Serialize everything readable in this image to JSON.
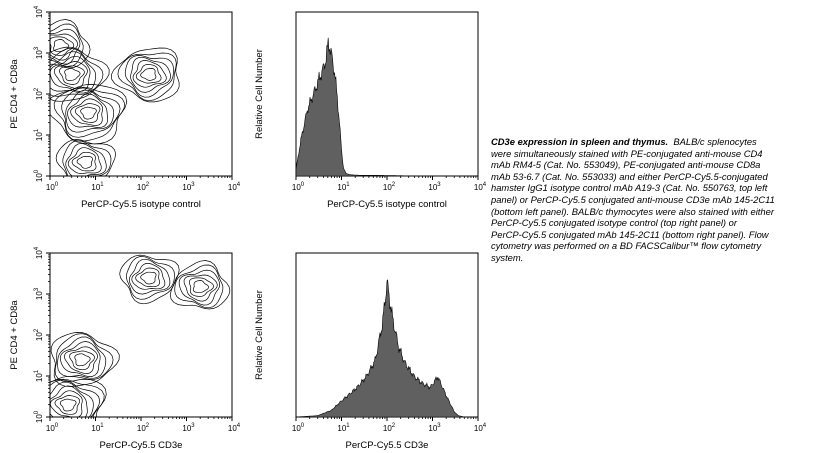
{
  "chart_data": [
    {
      "type": "contour",
      "panel": "top-left",
      "xlabel": "PerCP-Cy5.5 isotype control",
      "ylabel": "PE CD4 + CD8a",
      "x_scale": "log",
      "y_scale": "log",
      "xlim": [
        1,
        10000
      ],
      "ylim": [
        1,
        10000
      ],
      "x_ticks": [
        "10^0",
        "10^1",
        "10^2",
        "10^3",
        "10^4"
      ],
      "y_ticks": [
        "10^0",
        "10^1",
        "10^2",
        "10^3",
        "10^4"
      ],
      "populations": [
        {
          "x": 1.7,
          "y": 1500
        },
        {
          "x": 3,
          "y": 300
        },
        {
          "x": 7,
          "y": 35
        },
        {
          "x": 6,
          "y": 2.2
        },
        {
          "x": 150,
          "y": 300
        }
      ]
    },
    {
      "type": "histogram",
      "panel": "top-right",
      "xlabel": "PerCP-Cy5.5 isotype control",
      "ylabel": "Relative Cell Number",
      "x_scale": "log",
      "xlim": [
        1,
        10000
      ],
      "x_ticks": [
        "10^0",
        "10^1",
        "10^2",
        "10^3",
        "10^4"
      ],
      "fill": "#606060",
      "x": [
        1,
        1.3,
        1.8,
        2.5,
        3.2,
        4,
        4.6,
        5.2,
        6,
        7,
        8,
        9,
        10,
        11,
        12.5,
        15,
        25,
        60,
        200,
        1000,
        10000
      ],
      "y": [
        0.05,
        0.28,
        0.5,
        0.62,
        0.72,
        0.8,
        0.88,
        1.0,
        0.9,
        0.78,
        0.6,
        0.4,
        0.2,
        0.06,
        0.02,
        0.01,
        0.005,
        0.005,
        0.002,
        0,
        0
      ]
    },
    {
      "type": "contour",
      "panel": "bottom-left",
      "xlabel": "PerCP-Cy5.5 CD3e",
      "ylabel": "PE CD4 + CD8a",
      "x_scale": "log",
      "y_scale": "log",
      "xlim": [
        1,
        10000
      ],
      "ylim": [
        1,
        10000
      ],
      "x_ticks": [
        "10^0",
        "10^1",
        "10^2",
        "10^3",
        "10^4"
      ],
      "y_ticks": [
        "10^0",
        "10^1",
        "10^2",
        "10^3",
        "10^4"
      ],
      "populations": [
        {
          "x": 2000,
          "y": 1500
        },
        {
          "x": 5,
          "y": 25
        },
        {
          "x": 2.5,
          "y": 2
        },
        {
          "x": 150,
          "y": 2500
        }
      ]
    },
    {
      "type": "histogram",
      "panel": "bottom-right",
      "xlabel": "PerCP-Cy5.5 CD3e",
      "ylabel": "Relative Cell Number",
      "x_scale": "log",
      "xlim": [
        1,
        10000
      ],
      "x_ticks": [
        "10^0",
        "10^1",
        "10^2",
        "10^3",
        "10^4"
      ],
      "fill": "#606060",
      "x": [
        1,
        3,
        6,
        10,
        15,
        22,
        35,
        55,
        80,
        100,
        130,
        180,
        250,
        400,
        600,
        900,
        1300,
        2000,
        3000,
        3700,
        5000,
        10000
      ],
      "y": [
        0,
        0.01,
        0.05,
        0.12,
        0.17,
        0.22,
        0.3,
        0.42,
        0.7,
        1.0,
        0.75,
        0.52,
        0.4,
        0.3,
        0.25,
        0.22,
        0.3,
        0.16,
        0.04,
        0.01,
        0,
        0
      ]
    }
  ],
  "caption": {
    "title": "CD3e expression in spleen and thymus.",
    "lines": [
      "were simultaneously stained with PE-conjugated anti-mouse CD4",
      "mAb RM4-5 (Cat. No. 553049), PE-conjugated anti-mouse CD8a",
      "mAb 53-6.7 (Cat. No. 553033) and either PerCP-Cy5.5-conjugated",
      "hamster IgG1 isotype control mAb A19-3 (Cat. No. 550763, top left",
      "panel) or PerCP-Cy5.5 conjugated anti-mouse CD3e mAb 145-2C11",
      "(bottom left panel). BALB/c thymocytes were also stained with either",
      "PerCP-Cy5.5 conjugated isotype control (top right panel) or",
      "PerCP-Cy5.5 conjugated mAb 145-2C11 (bottom right panel). Flow",
      "cytometry was performed on a BD FACSCalibur™ flow cytometry",
      "system."
    ],
    "first_line_rest": "BALB/c splenocytes"
  }
}
